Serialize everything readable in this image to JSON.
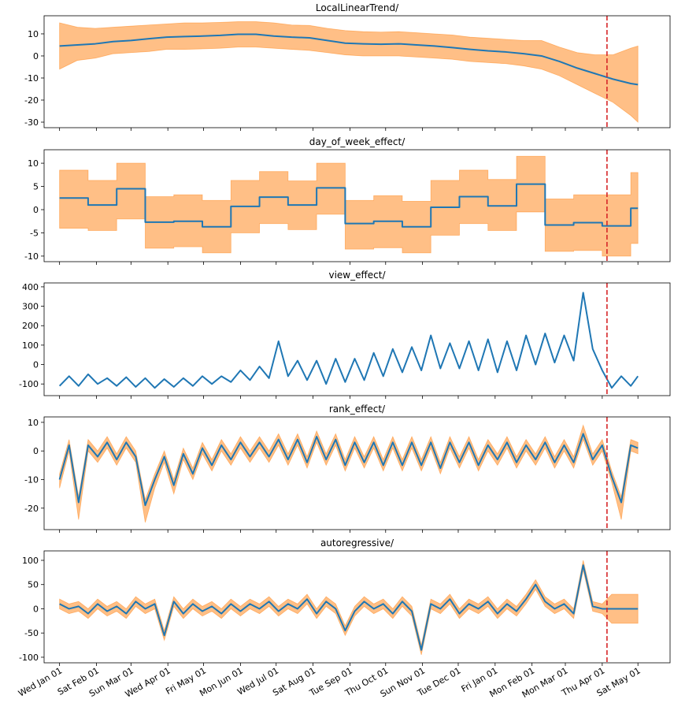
{
  "chart_data": [
    {
      "type": "line",
      "title": "LocalLinearTrend/",
      "x": [
        0,
        15,
        30,
        45,
        60,
        75,
        90,
        105,
        120,
        135,
        150,
        165,
        180,
        195,
        210,
        225,
        240,
        255,
        270,
        285,
        300,
        315,
        330,
        345,
        360,
        375,
        390,
        405,
        420,
        435,
        450,
        465,
        480,
        486
      ],
      "series": [
        {
          "color": "#1f77b4",
          "values": [
            4.5,
            5,
            5.5,
            6.5,
            7,
            7.8,
            8.5,
            8.8,
            9,
            9.3,
            9.8,
            9.8,
            9,
            8.5,
            8.2,
            7,
            5.8,
            5.5,
            5.3,
            5.5,
            5,
            4.5,
            3.8,
            3,
            2.3,
            1.8,
            1,
            0,
            -2.5,
            -5.5,
            -8,
            -10.5,
            -12.5,
            -13
          ]
        }
      ],
      "band": {
        "color": "#ff7f0e",
        "lower": [
          -6,
          -2,
          -1,
          1,
          1.5,
          2,
          3,
          3,
          3.2,
          3.5,
          4,
          4,
          3.5,
          3,
          2.5,
          1.5,
          0.5,
          0,
          0,
          0,
          -0.5,
          -1,
          -1.5,
          -2.5,
          -3,
          -3.5,
          -4.5,
          -6,
          -9,
          -13,
          -17,
          -21,
          -27,
          -30
        ],
        "upper": [
          15,
          13,
          12.5,
          13,
          13.5,
          14,
          14.5,
          15,
          15,
          15.2,
          15.5,
          15.5,
          15,
          14,
          13.8,
          12.5,
          11.5,
          11,
          10.8,
          11,
          10.5,
          10,
          9.5,
          8.5,
          8,
          7.5,
          7,
          7,
          4,
          1.5,
          0.5,
          0.5,
          3.5,
          4.5
        ]
      },
      "vline": 460,
      "vline_color": "#d62728",
      "xlim": [
        -13,
        513
      ],
      "ylim": [
        -32.5,
        18.2
      ],
      "yticks": [
        -30,
        -20,
        -10,
        0,
        10
      ]
    },
    {
      "type": "line",
      "title": "day_of_week_effect/",
      "x": [
        0,
        24,
        24,
        48,
        48,
        72,
        72,
        96,
        96,
        120,
        120,
        144,
        144,
        168,
        168,
        192,
        192,
        216,
        216,
        240,
        240,
        264,
        264,
        288,
        288,
        312,
        312,
        336,
        336,
        360,
        360,
        384,
        384,
        408,
        408,
        432,
        432,
        456,
        456,
        480,
        480,
        486
      ],
      "series": [
        {
          "color": "#1f77b4",
          "values": [
            2.5,
            2.5,
            1,
            1,
            4.5,
            4.5,
            -2.7,
            -2.7,
            -2.5,
            -2.5,
            -3.7,
            -3.7,
            0.7,
            0.7,
            2.7,
            2.7,
            1,
            1,
            4.7,
            4.7,
            -3,
            -3,
            -2.5,
            -2.5,
            -3.7,
            -3.7,
            0.5,
            0.5,
            2.8,
            2.8,
            0.8,
            0.8,
            5.5,
            5.5,
            -3.3,
            -3.3,
            -2.8,
            -2.8,
            -3.5,
            -3.5,
            0.3,
            0.3
          ]
        }
      ],
      "band": {
        "color": "#ff7f0e",
        "lower": [
          -4,
          -4,
          -4.5,
          -4.5,
          -2,
          -2,
          -8.3,
          -8.3,
          -8,
          -8,
          -9.3,
          -9.3,
          -5,
          -5,
          -3,
          -3,
          -4.3,
          -4.3,
          -1,
          -1,
          -8.5,
          -8.5,
          -8.2,
          -8.2,
          -9.3,
          -9.3,
          -5.5,
          -5.5,
          -3,
          -3,
          -4.5,
          -4.5,
          -0.5,
          -0.5,
          -9,
          -9,
          -8.8,
          -8.8,
          -10,
          -10,
          -7.3,
          -7.3
        ],
        "upper": [
          8.5,
          8.5,
          6.3,
          6.3,
          10,
          10,
          2.8,
          2.8,
          3.2,
          3.2,
          2,
          2,
          6.3,
          6.3,
          8.2,
          8.2,
          6.2,
          6.2,
          10,
          10,
          2,
          2,
          3,
          3,
          1.8,
          1.8,
          6.3,
          6.3,
          8.5,
          8.5,
          6.5,
          6.5,
          11.5,
          11.5,
          2.3,
          2.3,
          3.2,
          3.2,
          3.2,
          3.2,
          8,
          8
        ]
      },
      "vline": 460,
      "vline_color": "#d62728",
      "xlim": [
        -13,
        513
      ],
      "ylim": [
        -11.2,
        12.9
      ],
      "yticks": [
        -10,
        -5,
        0,
        5,
        10
      ]
    },
    {
      "type": "line",
      "title": "view_effect/",
      "x": [
        0,
        8,
        16,
        24,
        32,
        40,
        48,
        56,
        64,
        72,
        80,
        88,
        96,
        104,
        112,
        120,
        128,
        136,
        144,
        152,
        160,
        168,
        176,
        184,
        192,
        200,
        208,
        216,
        224,
        232,
        240,
        248,
        256,
        264,
        272,
        280,
        288,
        296,
        304,
        312,
        320,
        328,
        336,
        344,
        352,
        360,
        368,
        376,
        384,
        392,
        400,
        408,
        416,
        424,
        432,
        440,
        448,
        456,
        464,
        472,
        480,
        486
      ],
      "series": [
        {
          "color": "#1f77b4",
          "values": [
            -110,
            -60,
            -110,
            -50,
            -100,
            -70,
            -110,
            -65,
            -115,
            -70,
            -120,
            -75,
            -115,
            -70,
            -110,
            -60,
            -100,
            -60,
            -90,
            -30,
            -80,
            -10,
            -70,
            120,
            -60,
            20,
            -80,
            20,
            -100,
            30,
            -90,
            30,
            -80,
            60,
            -60,
            80,
            -40,
            90,
            -30,
            150,
            -20,
            110,
            -20,
            120,
            -30,
            130,
            -40,
            120,
            -30,
            150,
            0,
            160,
            10,
            150,
            20,
            370,
            80,
            -30,
            -120,
            -60,
            -110,
            -60
          ]
        }
      ],
      "vline": 460,
      "vline_color": "#d62728",
      "xlim": [
        -13,
        513
      ],
      "ylim": [
        -160,
        420
      ],
      "yticks": [
        -100,
        0,
        100,
        200,
        300,
        400
      ]
    },
    {
      "type": "line",
      "title": "rank_effect/",
      "x": [
        0,
        8,
        16,
        24,
        32,
        40,
        48,
        56,
        64,
        72,
        80,
        88,
        96,
        104,
        112,
        120,
        128,
        136,
        144,
        152,
        160,
        168,
        176,
        184,
        192,
        200,
        208,
        216,
        224,
        232,
        240,
        248,
        256,
        264,
        272,
        280,
        288,
        296,
        304,
        312,
        320,
        328,
        336,
        344,
        352,
        360,
        368,
        376,
        384,
        392,
        400,
        408,
        416,
        424,
        432,
        440,
        448,
        456,
        464,
        472,
        480,
        486
      ],
      "series": [
        {
          "color": "#1f77b4",
          "values": [
            -10,
            2,
            -18,
            2,
            -2,
            3,
            -3,
            3,
            -2,
            -19,
            -10,
            -2,
            -12,
            -1,
            -8,
            1,
            -5,
            2,
            -3,
            3,
            -2,
            3,
            -2,
            4,
            -3,
            4,
            -4,
            5,
            -3,
            4,
            -5,
            3,
            -4,
            3,
            -5,
            3,
            -5,
            3,
            -5,
            3,
            -6,
            3,
            -4,
            3,
            -5,
            2,
            -3,
            3,
            -4,
            2,
            -3,
            3,
            -4,
            2,
            -4,
            6,
            -3,
            2,
            -9,
            -18,
            2,
            1
          ]
        }
      ],
      "band": {
        "color": "#ff7f0e",
        "lower": [
          -13,
          0,
          -24,
          0,
          -4,
          1,
          -5,
          1,
          -4,
          -25,
          -13,
          -4,
          -15,
          -3,
          -10,
          -1,
          -7,
          0,
          -5,
          1,
          -4,
          1,
          -4,
          2,
          -5,
          2,
          -6,
          3,
          -5,
          2,
          -7,
          1,
          -6,
          1,
          -7,
          1,
          -7,
          1,
          -7,
          1,
          -8,
          1,
          -6,
          1,
          -7,
          0,
          -5,
          1,
          -6,
          0,
          -5,
          1,
          -6,
          0,
          -6,
          4,
          -5,
          0,
          -11,
          -24,
          0,
          -1
        ],
        "upper": [
          -8,
          4,
          -16,
          4,
          0,
          5,
          -1,
          5,
          0,
          -17,
          -8,
          0,
          -10,
          1,
          -6,
          3,
          -3,
          4,
          -1,
          5,
          0,
          5,
          0,
          6,
          -1,
          6,
          -2,
          7,
          -1,
          6,
          -3,
          5,
          -2,
          5,
          -3,
          5,
          -3,
          5,
          -3,
          5,
          -4,
          5,
          -2,
          5,
          -3,
          4,
          -1,
          5,
          -2,
          4,
          -1,
          5,
          -2,
          4,
          -2,
          9,
          -1,
          4,
          -7,
          -16,
          4,
          3
        ]
      },
      "vline": 460,
      "vline_color": "#d62728",
      "xlim": [
        -13,
        513
      ],
      "ylim": [
        -27.5,
        11.9
      ],
      "yticks": [
        -20,
        -10,
        0,
        10
      ]
    },
    {
      "type": "line",
      "title": "autoregressive/",
      "x": [
        0,
        8,
        16,
        24,
        32,
        40,
        48,
        56,
        64,
        72,
        80,
        88,
        96,
        104,
        112,
        120,
        128,
        136,
        144,
        152,
        160,
        168,
        176,
        184,
        192,
        200,
        208,
        216,
        224,
        232,
        240,
        248,
        256,
        264,
        272,
        280,
        288,
        296,
        304,
        312,
        320,
        328,
        336,
        344,
        352,
        360,
        368,
        376,
        384,
        392,
        400,
        408,
        416,
        424,
        432,
        440,
        448,
        456,
        464,
        472,
        480,
        486
      ],
      "series": [
        {
          "color": "#1f77b4",
          "values": [
            10,
            0,
            5,
            -10,
            10,
            -5,
            5,
            -10,
            15,
            0,
            10,
            -55,
            15,
            -10,
            10,
            -5,
            5,
            -10,
            10,
            -5,
            10,
            0,
            15,
            -5,
            10,
            0,
            20,
            -10,
            15,
            0,
            -45,
            -5,
            15,
            0,
            10,
            -10,
            15,
            -5,
            -85,
            10,
            0,
            20,
            -10,
            10,
            0,
            15,
            -10,
            10,
            -5,
            20,
            50,
            15,
            0,
            10,
            -10,
            90,
            5,
            0,
            0,
            0,
            0,
            0
          ]
        }
      ],
      "band": {
        "color": "#ff7f0e",
        "lower": [
          0,
          -10,
          -5,
          -20,
          0,
          -15,
          -5,
          -20,
          5,
          -10,
          0,
          -65,
          5,
          -20,
          0,
          -15,
          -5,
          -20,
          0,
          -15,
          0,
          -10,
          5,
          -15,
          0,
          -10,
          10,
          -20,
          5,
          -10,
          -55,
          -15,
          5,
          -10,
          0,
          -20,
          5,
          -15,
          -95,
          0,
          -10,
          10,
          -20,
          0,
          -10,
          5,
          -20,
          0,
          -15,
          10,
          40,
          5,
          -10,
          0,
          -20,
          80,
          -5,
          -10,
          -30,
          -30,
          -30,
          -30
        ],
        "upper": [
          20,
          10,
          15,
          0,
          20,
          5,
          15,
          0,
          25,
          10,
          20,
          -45,
          25,
          0,
          20,
          5,
          15,
          0,
          20,
          5,
          20,
          10,
          25,
          5,
          20,
          10,
          30,
          0,
          25,
          10,
          -35,
          5,
          25,
          10,
          20,
          0,
          25,
          5,
          -75,
          20,
          10,
          30,
          0,
          20,
          10,
          25,
          0,
          20,
          5,
          30,
          60,
          25,
          10,
          20,
          0,
          100,
          15,
          10,
          30,
          30,
          30,
          30
        ]
      },
      "vline": 460,
      "vline_color": "#d62728",
      "xlim": [
        -13,
        513
      ],
      "ylim": [
        -111.5,
        119.5
      ],
      "yticks": [
        -100,
        -50,
        0,
        50,
        100
      ],
      "xticks": [
        {
          "value": 0,
          "label": "Wed Jan 01"
        },
        {
          "value": 31,
          "label": "Sat Feb 01"
        },
        {
          "value": 60,
          "label": "Sun Mar 01"
        },
        {
          "value": 91,
          "label": "Wed Apr 01"
        },
        {
          "value": 121,
          "label": "Fri May 01"
        },
        {
          "value": 152,
          "label": "Mon Jun 01"
        },
        {
          "value": 182,
          "label": "Wed Jul 01"
        },
        {
          "value": 213,
          "label": "Sat Aug 01"
        },
        {
          "value": 244,
          "label": "Tue Sep 01"
        },
        {
          "value": 274,
          "label": "Thu Oct 01"
        },
        {
          "value": 305,
          "label": "Sun Nov 01"
        },
        {
          "value": 335,
          "label": "Tue Dec 01"
        },
        {
          "value": 366,
          "label": "Fri Jan 01"
        },
        {
          "value": 397,
          "label": "Mon Feb 01"
        },
        {
          "value": 425,
          "label": "Mon Mar 01"
        },
        {
          "value": 456,
          "label": "Thu Apr 01"
        },
        {
          "value": 486,
          "label": "Sat May 01"
        }
      ]
    }
  ]
}
